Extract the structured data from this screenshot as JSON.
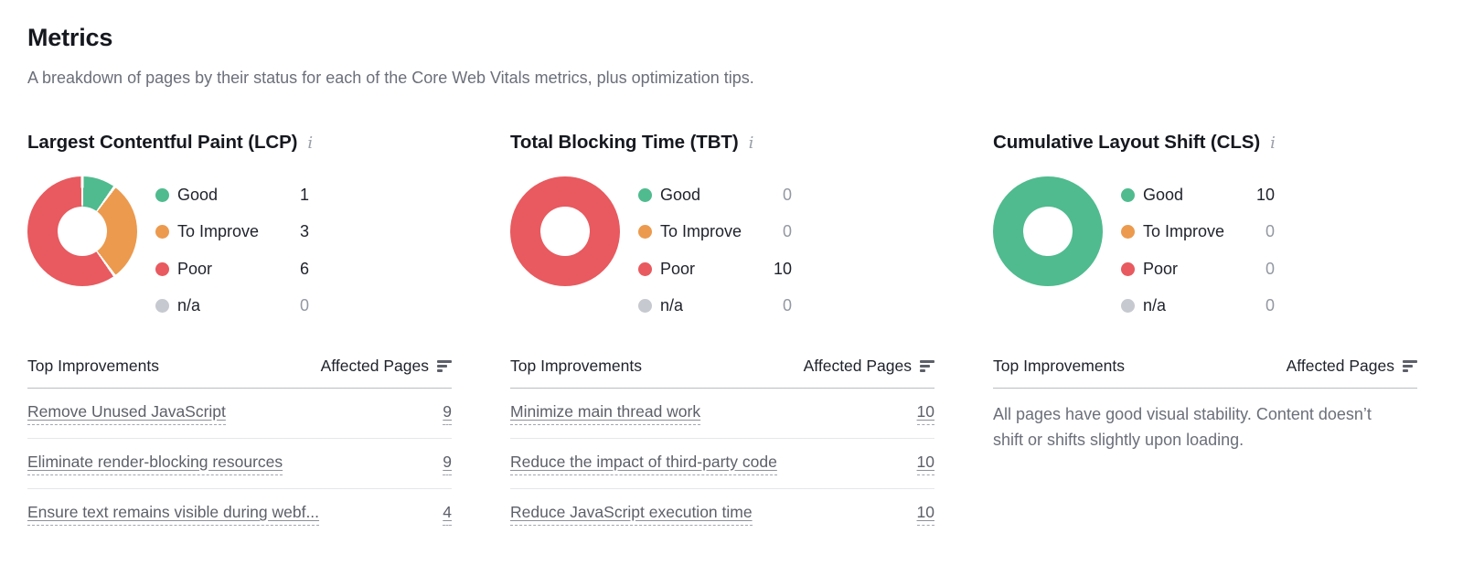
{
  "page": {
    "title": "Metrics",
    "subtitle": "A breakdown of pages by their status for each of the Core Web Vitals metrics, plus optimization tips."
  },
  "colors": {
    "good": "#4fbb8e",
    "to_improve": "#ec9a4e",
    "poor": "#e85a5f",
    "na": "#c6c9d0"
  },
  "table_headers": {
    "improvements": "Top Improvements",
    "affected_pages": "Affected Pages",
    "sort_icon": "sort-descending"
  },
  "info_icon_glyph": "i",
  "metrics": [
    {
      "title": "Largest Contentful Paint (LCP)",
      "legend": [
        {
          "label": "Good",
          "value": 1,
          "color_key": "good"
        },
        {
          "label": "To Improve",
          "value": 3,
          "color_key": "to_improve"
        },
        {
          "label": "Poor",
          "value": 6,
          "color_key": "poor"
        },
        {
          "label": "n/a",
          "value": 0,
          "color_key": "na"
        }
      ],
      "improvements": [
        {
          "label": "Remove Unused JavaScript",
          "affected_pages": 9
        },
        {
          "label": "Eliminate render-blocking resources",
          "affected_pages": 9
        },
        {
          "label": "Ensure text remains visible during webf...",
          "affected_pages": 4
        }
      ]
    },
    {
      "title": "Total Blocking Time (TBT)",
      "legend": [
        {
          "label": "Good",
          "value": 0,
          "color_key": "good"
        },
        {
          "label": "To Improve",
          "value": 0,
          "color_key": "to_improve"
        },
        {
          "label": "Poor",
          "value": 10,
          "color_key": "poor"
        },
        {
          "label": "n/a",
          "value": 0,
          "color_key": "na"
        }
      ],
      "improvements": [
        {
          "label": "Minimize main thread work",
          "affected_pages": 10
        },
        {
          "label": "Reduce the impact of third-party code",
          "affected_pages": 10
        },
        {
          "label": "Reduce JavaScript execution time",
          "affected_pages": 10
        }
      ]
    },
    {
      "title": "Cumulative Layout Shift (CLS)",
      "legend": [
        {
          "label": "Good",
          "value": 10,
          "color_key": "good"
        },
        {
          "label": "To Improve",
          "value": 0,
          "color_key": "to_improve"
        },
        {
          "label": "Poor",
          "value": 0,
          "color_key": "poor"
        },
        {
          "label": "n/a",
          "value": 0,
          "color_key": "na"
        }
      ],
      "improvements": [],
      "note": "All pages have good visual stability. Content doesn’t shift or shifts slightly upon loading."
    }
  ],
  "chart_data": [
    {
      "type": "pie",
      "title": "Largest Contentful Paint (LCP)",
      "categories": [
        "Good",
        "To Improve",
        "Poor",
        "n/a"
      ],
      "values": [
        1,
        3,
        6,
        0
      ],
      "legend_position": "right"
    },
    {
      "type": "pie",
      "title": "Total Blocking Time (TBT)",
      "categories": [
        "Good",
        "To Improve",
        "Poor",
        "n/a"
      ],
      "values": [
        0,
        0,
        10,
        0
      ],
      "legend_position": "right"
    },
    {
      "type": "pie",
      "title": "Cumulative Layout Shift (CLS)",
      "categories": [
        "Good",
        "To Improve",
        "Poor",
        "n/a"
      ],
      "values": [
        10,
        0,
        0,
        0
      ],
      "legend_position": "right"
    }
  ]
}
